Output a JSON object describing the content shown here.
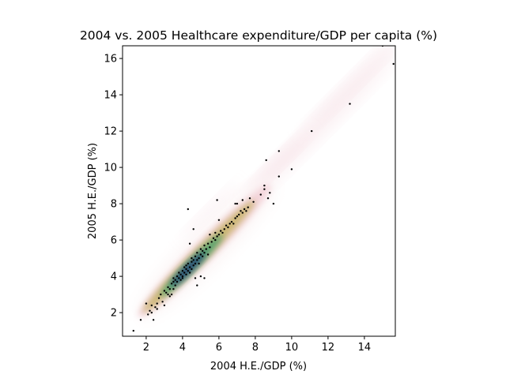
{
  "chart_data": {
    "type": "scatter",
    "title": "2004 vs. 2005 Healthcare expenditure/GDP per capita (%)",
    "xlabel": "2004 H.E./GDP (%)",
    "ylabel": "2005 H.E./GDP (%)",
    "xlim": [
      0.7,
      15.7
    ],
    "ylim": [
      0.7,
      16.7
    ],
    "xticks": [
      {
        "value": 2,
        "label": "2"
      },
      {
        "value": 4,
        "label": "4"
      },
      {
        "value": 6,
        "label": "6"
      },
      {
        "value": 8,
        "label": "8"
      },
      {
        "value": 10,
        "label": "10"
      },
      {
        "value": 12,
        "label": "12"
      },
      {
        "value": 14,
        "label": "14"
      }
    ],
    "yticks": [
      {
        "value": 2,
        "label": "2"
      },
      {
        "value": 4,
        "label": "4"
      },
      {
        "value": 6,
        "label": "6"
      },
      {
        "value": 8,
        "label": "8"
      },
      {
        "value": 10,
        "label": "10"
      },
      {
        "value": 12,
        "label": "12"
      },
      {
        "value": 14,
        "label": "14"
      },
      {
        "value": 16,
        "label": "16"
      }
    ],
    "grid": false,
    "legend": "none",
    "background": "2D kernel density estimate (gist_earth_r-like colormap) behind the points",
    "colors": {
      "points": "#000000",
      "density_low": "#fbf3f3",
      "density_mid_pink": "#f2cfd6",
      "density_mid": "#c8b46a",
      "density_high": "#3f9f6e",
      "density_peak": "#1a2f78"
    },
    "points": [
      [
        1.3,
        1.0
      ],
      [
        1.7,
        1.6
      ],
      [
        2.0,
        2.5
      ],
      [
        2.1,
        1.9
      ],
      [
        2.2,
        2.1
      ],
      [
        2.3,
        2.0
      ],
      [
        2.3,
        2.4
      ],
      [
        2.4,
        1.6
      ],
      [
        2.5,
        2.3
      ],
      [
        2.6,
        2.5
      ],
      [
        2.7,
        2.8
      ],
      [
        2.8,
        3.0
      ],
      [
        2.9,
        2.6
      ],
      [
        3.0,
        3.2
      ],
      [
        3.0,
        2.4
      ],
      [
        3.1,
        3.1
      ],
      [
        3.2,
        3.0
      ],
      [
        3.2,
        3.4
      ],
      [
        3.3,
        3.3
      ],
      [
        3.4,
        3.6
      ],
      [
        3.4,
        3.0
      ],
      [
        3.5,
        3.7
      ],
      [
        3.5,
        3.3
      ],
      [
        3.6,
        3.8
      ],
      [
        3.6,
        3.5
      ],
      [
        3.7,
        4.0
      ],
      [
        3.7,
        3.7
      ],
      [
        3.8,
        3.9
      ],
      [
        3.8,
        4.2
      ],
      [
        3.9,
        4.1
      ],
      [
        3.9,
        3.8
      ],
      [
        4.0,
        4.3
      ],
      [
        4.0,
        4.0
      ],
      [
        4.0,
        3.9
      ],
      [
        4.1,
        4.5
      ],
      [
        4.1,
        4.2
      ],
      [
        4.2,
        4.4
      ],
      [
        4.2,
        4.1
      ],
      [
        4.2,
        4.6
      ],
      [
        4.3,
        4.3
      ],
      [
        4.3,
        4.7
      ],
      [
        4.4,
        4.5
      ],
      [
        4.4,
        4.2
      ],
      [
        4.5,
        4.8
      ],
      [
        4.5,
        4.4
      ],
      [
        4.5,
        5.0
      ],
      [
        4.6,
        4.6
      ],
      [
        4.6,
        4.9
      ],
      [
        4.7,
        4.7
      ],
      [
        4.7,
        5.1
      ],
      [
        4.8,
        4.9
      ],
      [
        4.8,
        5.3
      ],
      [
        4.9,
        5.0
      ],
      [
        4.9,
        4.7
      ],
      [
        5.0,
        5.2
      ],
      [
        5.0,
        5.5
      ],
      [
        5.1,
        5.1
      ],
      [
        5.1,
        5.4
      ],
      [
        5.2,
        5.3
      ],
      [
        5.2,
        5.7
      ],
      [
        5.3,
        5.5
      ],
      [
        5.4,
        5.8
      ],
      [
        5.4,
        5.2
      ],
      [
        5.5,
        5.6
      ],
      [
        5.5,
        6.3
      ],
      [
        5.6,
        5.9
      ],
      [
        5.7,
        6.1
      ],
      [
        5.8,
        6.0
      ],
      [
        5.8,
        6.4
      ],
      [
        5.9,
        6.2
      ],
      [
        6.0,
        6.3
      ],
      [
        6.1,
        6.5
      ],
      [
        6.2,
        6.4
      ],
      [
        6.3,
        6.6
      ],
      [
        6.4,
        6.8
      ],
      [
        6.5,
        6.7
      ],
      [
        6.6,
        6.9
      ],
      [
        6.7,
        7.0
      ],
      [
        6.8,
        6.9
      ],
      [
        6.9,
        7.2
      ],
      [
        7.0,
        7.3
      ],
      [
        7.0,
        8.0
      ],
      [
        7.1,
        7.4
      ],
      [
        7.2,
        7.6
      ],
      [
        7.3,
        7.5
      ],
      [
        7.4,
        7.7
      ],
      [
        7.5,
        7.6
      ],
      [
        7.6,
        7.8
      ],
      [
        7.7,
        8.3
      ],
      [
        7.9,
        8.1
      ],
      [
        8.3,
        8.5
      ],
      [
        8.5,
        8.8
      ],
      [
        8.5,
        9.0
      ],
      [
        8.6,
        10.4
      ],
      [
        8.7,
        8.3
      ],
      [
        8.8,
        8.6
      ],
      [
        9.0,
        8.0
      ],
      [
        9.3,
        9.5
      ],
      [
        9.3,
        10.9
      ],
      [
        10.0,
        9.9
      ],
      [
        11.1,
        12.0
      ],
      [
        13.2,
        13.5
      ],
      [
        15.0,
        16.7
      ],
      [
        15.6,
        15.7
      ],
      [
        4.3,
        7.7
      ],
      [
        4.4,
        5.8
      ],
      [
        4.6,
        6.6
      ],
      [
        4.8,
        3.5
      ],
      [
        5.2,
        3.9
      ],
      [
        5.9,
        8.2
      ],
      [
        3.5,
        3.9
      ],
      [
        4.7,
        3.9
      ],
      [
        6.0,
        7.1
      ],
      [
        5.0,
        4.0
      ],
      [
        3.3,
        2.9
      ],
      [
        2.6,
        2.2
      ],
      [
        6.9,
        8.0
      ],
      [
        7.3,
        8.2
      ]
    ]
  }
}
